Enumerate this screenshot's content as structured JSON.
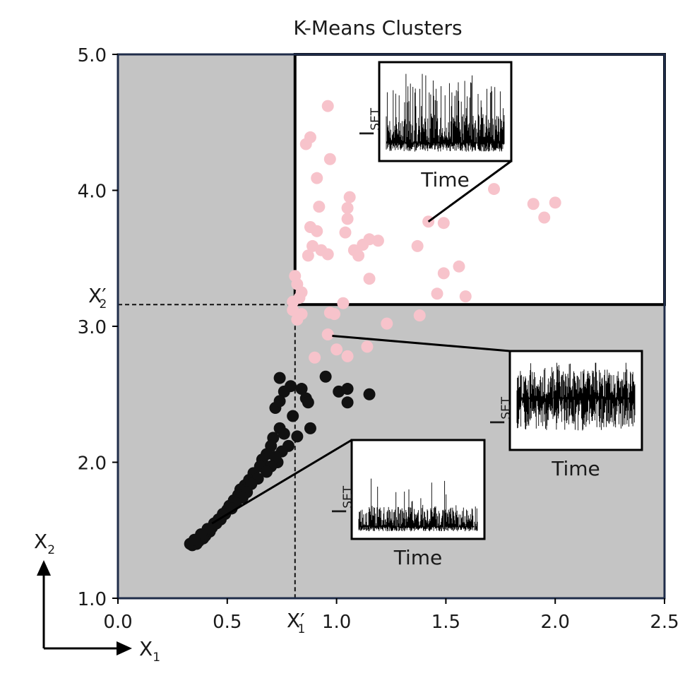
{
  "chart_data": {
    "type": "scatter",
    "title": "K-Means Clusters",
    "xlim": [
      0.0,
      2.5
    ],
    "ylim": [
      1.0,
      5.0
    ],
    "xticks": [
      "0.0",
      "0.5",
      "1.0",
      "1.5",
      "2.0",
      "2.5"
    ],
    "yticks": [
      "1.0",
      "2.0",
      "3.0",
      "4.0",
      "5.0"
    ],
    "grid": false,
    "thresholds": {
      "x1_prime": 0.81,
      "x2_prime": 3.16,
      "x1_label": "X",
      "x1_sub": "1",
      "x2_label": "X",
      "x2_sub": "2",
      "prime": "′"
    },
    "axis_arrows": {
      "x_label": "X",
      "x_sub": "1",
      "y_label": "X",
      "y_sub": "2"
    },
    "colors": {
      "background_region": "#c4c4c4",
      "highlight_region": "#ffffff",
      "frame": "#1f2d4a",
      "pink_cluster": "#f7c3cb",
      "black_cluster": "#111111"
    },
    "series": [
      {
        "color": "#f7c3cb",
        "x": [
          0.96,
          0.88,
          0.86,
          0.97,
          0.91,
          1.72,
          1.9,
          2.0,
          1.95,
          0.92,
          1.06,
          1.05,
          0.88,
          0.91,
          1.05,
          1.42,
          1.49,
          1.04,
          0.89,
          0.93,
          1.15,
          1.12,
          1.19,
          1.08,
          1.37,
          1.1,
          0.96,
          0.87,
          1.56,
          1.49,
          0.81,
          0.82,
          0.84,
          1.15,
          0.83,
          1.46,
          1.59,
          0.8,
          1.03,
          0.8,
          0.84,
          0.97,
          0.99,
          1.38,
          0.82,
          1.23,
          0.96,
          1.14,
          1.0,
          0.9,
          1.05
        ],
        "y": [
          4.62,
          4.39,
          4.34,
          4.23,
          4.09,
          4.01,
          3.9,
          3.91,
          3.8,
          3.88,
          3.95,
          3.87,
          3.73,
          3.7,
          3.79,
          3.77,
          3.76,
          3.69,
          3.59,
          3.56,
          3.64,
          3.6,
          3.63,
          3.56,
          3.59,
          3.52,
          3.53,
          3.52,
          3.44,
          3.39,
          3.37,
          3.31,
          3.25,
          3.35,
          3.21,
          3.24,
          3.22,
          3.18,
          3.17,
          3.12,
          3.09,
          3.1,
          3.09,
          3.08,
          3.05,
          3.02,
          2.94,
          2.85,
          2.83,
          2.77,
          2.78
        ]
      },
      {
        "color": "#111111",
        "x": [
          0.74,
          0.79,
          0.84,
          0.76,
          0.95,
          1.01,
          1.05,
          0.86,
          0.87,
          0.72,
          0.74,
          1.15,
          1.05,
          0.8,
          0.74,
          0.88,
          0.76,
          0.71,
          0.7,
          0.68,
          0.73,
          0.66,
          0.65,
          0.62,
          0.6,
          0.58,
          0.56,
          0.55,
          0.53,
          0.51,
          0.5,
          0.48,
          0.47,
          0.45,
          0.43,
          0.42,
          0.4,
          0.39,
          0.37,
          0.36,
          0.34,
          0.33,
          0.82,
          0.78,
          0.75,
          0.72,
          0.7,
          0.68,
          0.64,
          0.61,
          0.59,
          0.57,
          0.54,
          0.52,
          0.49,
          0.46,
          0.44,
          0.41,
          0.38,
          0.35
        ],
        "y": [
          2.62,
          2.56,
          2.54,
          2.52,
          2.63,
          2.52,
          2.54,
          2.47,
          2.44,
          2.4,
          2.45,
          2.5,
          2.44,
          2.34,
          2.25,
          2.25,
          2.21,
          2.18,
          2.12,
          2.06,
          2.0,
          2.02,
          1.97,
          1.92,
          1.87,
          1.83,
          1.8,
          1.76,
          1.72,
          1.68,
          1.65,
          1.62,
          1.58,
          1.55,
          1.52,
          1.49,
          1.46,
          1.44,
          1.42,
          1.4,
          1.39,
          1.4,
          2.19,
          2.12,
          2.08,
          2.04,
          1.97,
          1.93,
          1.88,
          1.84,
          1.78,
          1.74,
          1.7,
          1.66,
          1.62,
          1.58,
          1.55,
          1.51,
          1.47,
          1.43
        ]
      }
    ],
    "insets": [
      {
        "ylabel": "I",
        "ylabel_sub": "SET",
        "xlabel": "Time",
        "seed": 7,
        "base": 0.15,
        "spread": 0.35,
        "spike": 0.6,
        "spike_prob": 0.25,
        "pointer": [
          1.42,
          3.77
        ]
      },
      {
        "ylabel": "I",
        "ylabel_sub": "SET",
        "xlabel": "Time",
        "seed": 11,
        "base": 0.55,
        "spread": 0.35,
        "spike": 0.2,
        "spike_prob": 0.1,
        "pointer": [
          0.98,
          2.93
        ]
      },
      {
        "ylabel": "I",
        "ylabel_sub": "SET",
        "xlabel": "Time",
        "seed": 23,
        "base": 0.08,
        "spread": 0.25,
        "spike": 0.35,
        "spike_prob": 0.08,
        "pointer": [
          0.43,
          1.55
        ]
      }
    ]
  }
}
